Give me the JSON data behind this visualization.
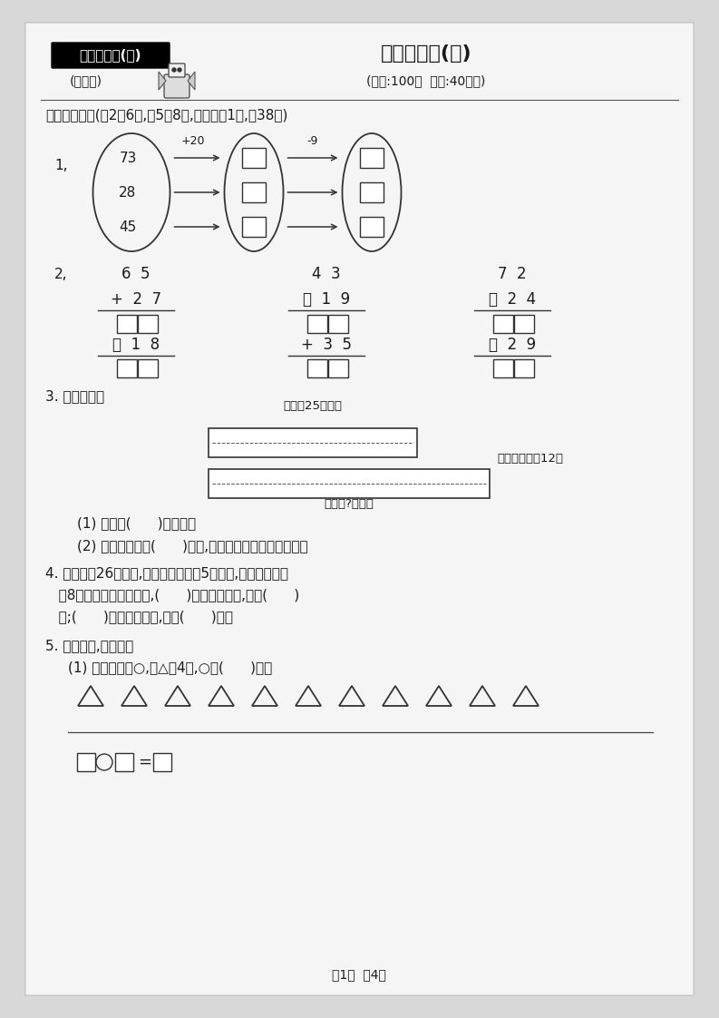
{
  "bg_color": "#d8d8d8",
  "page_bg": "#f5f5f5",
  "title_box_text": "二年级数学(上)",
  "title_main": "分类测评卷(一)",
  "subtitle_left": "(江苏版)",
  "subtitle_right": "(满分:100分  时间:40分钟)",
  "section1_title": "一、填一填。(第2题6分,第5题8分,其余每空1分,共38分)",
  "q1_numbers": [
    "73",
    "28",
    "45"
  ],
  "q1_op1": "+20",
  "q1_op2": "-9",
  "q3_bar1_label": "小丽有25张卡片",
  "q3_bar2_label": "小明比小丽多12张",
  "q3_bottom_label": "小明有?张卡片",
  "q3_q1": "(1) 小明有(      )张卡片。",
  "q3_q2": "(2) 小明送给小丽(      )张后,两人的卡片张数就同样多。",
  "q4_line1": "4. 小文写了26个大字,小丽比小文多写5个大字,小明比小文少",
  "q4_line2": "   写8个大字。三个人相比,(      )写的大字最多,写了(      )",
  "q4_line3": "   个;(      )写的大字最少,写了(      )个。",
  "q5_label": "5. 先画一画,再解答。",
  "q5_q1": "(1) 在横线上画○,比△少4个,○有(      )个。",
  "footer": "第1页  共4页"
}
